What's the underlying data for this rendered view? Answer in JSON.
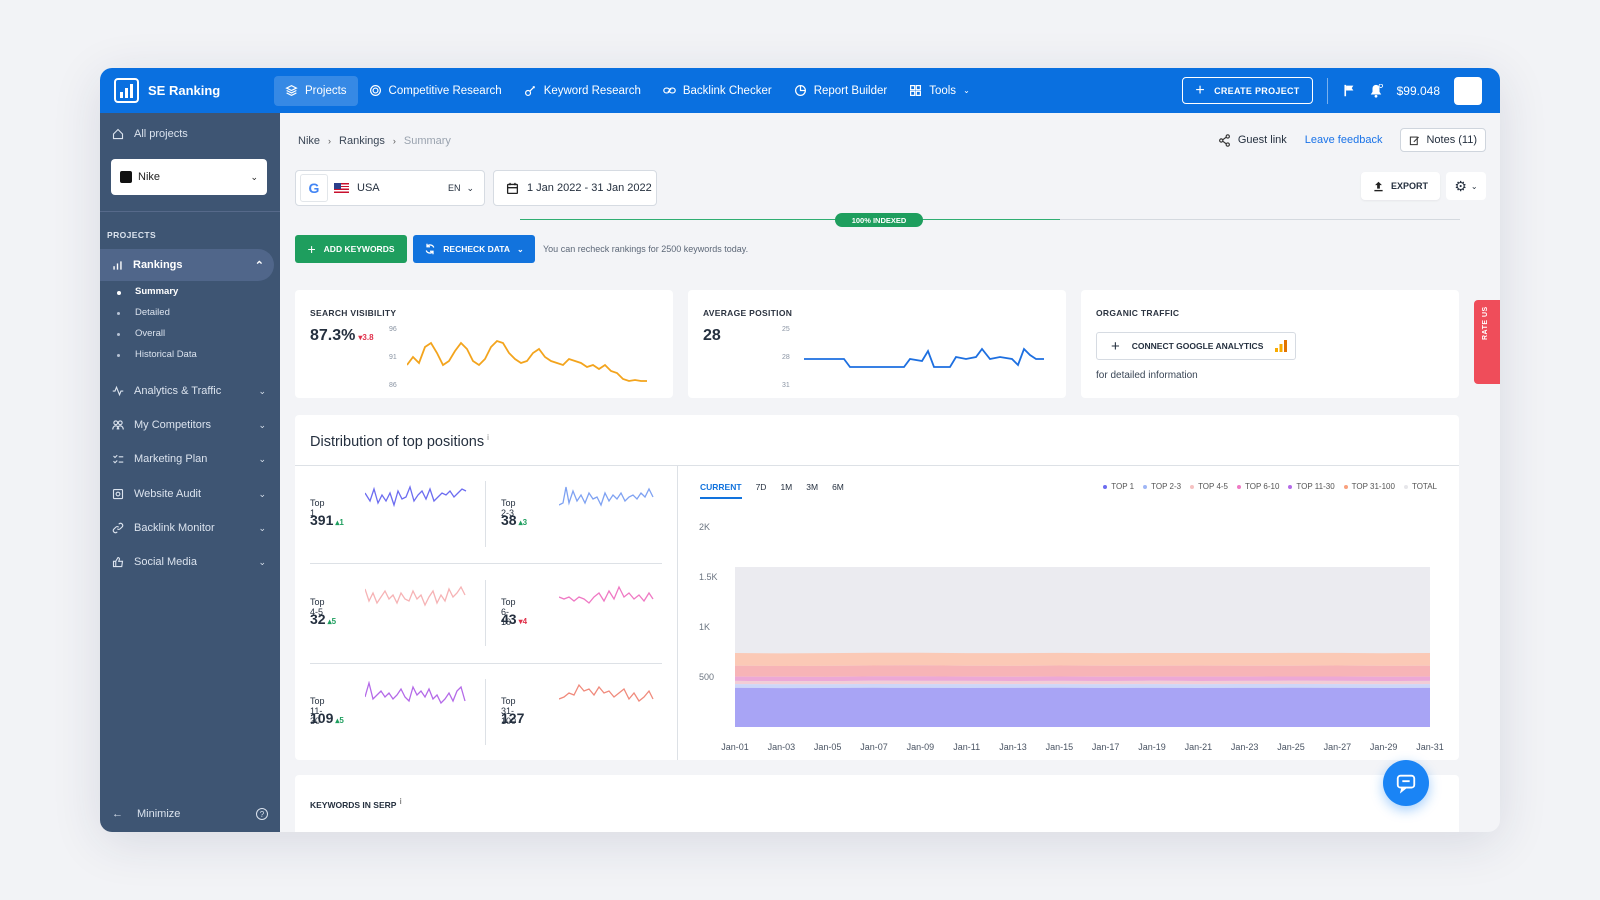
{
  "app": {
    "name": "SE Ranking"
  },
  "nav": {
    "projects": "Projects",
    "competitive": "Competitive Research",
    "keyword": "Keyword Research",
    "backlink": "Backlink Checker",
    "report": "Report Builder",
    "tools": "Tools",
    "create_project": "CREATE PROJECT",
    "balance": "$99.048"
  },
  "sidebar": {
    "all_projects": "All projects",
    "project": "Nike",
    "projects_heading": "PROJECTS",
    "rankings": "Rankings",
    "sub": [
      "Summary",
      "Detailed",
      "Overall",
      "Historical Data"
    ],
    "items": [
      "Analytics & Traffic",
      "My Competitors",
      "Marketing Plan",
      "Website Audit",
      "Backlink Monitor",
      "Social Media"
    ],
    "minimize": "Minimize"
  },
  "breadcrumb": {
    "project": "Nike",
    "section": "Rankings",
    "current": "Summary"
  },
  "header": {
    "guest_link": "Guest link",
    "feedback": "Leave feedback",
    "notes": "Notes (11)"
  },
  "filters": {
    "engine": "G",
    "country": "USA",
    "language": "EN",
    "date_range": "1 Jan 2022 - 31 Jan 2022"
  },
  "toolbar": {
    "export": "EXPORT",
    "indexed": "100% INDEXED",
    "add_keywords": "ADD KEYWORDS",
    "recheck": "RECHECK DATA",
    "recheck_note": "You can recheck rankings for 2500 keywords today."
  },
  "cards": {
    "visibility": {
      "title": "SEARCH VISIBILITY",
      "value": "87.3%",
      "delta": "3.8",
      "ticks": [
        "96",
        "91",
        "86"
      ]
    },
    "position": {
      "title": "AVERAGE POSITION",
      "value": "28",
      "ticks": [
        "25",
        "28",
        "31"
      ]
    },
    "traffic": {
      "title": "ORGANIC TRAFFIC",
      "button": "CONNECT GOOGLE ANALYTICS",
      "note": "for detailed information"
    }
  },
  "rate_us": "RATE US",
  "distribution": {
    "title": "Distribution of top positions",
    "cells": [
      {
        "label": "Top 1",
        "value": "391",
        "delta": "1",
        "dir": "up",
        "color": "#6c6cf0"
      },
      {
        "label": "Top 2-3",
        "value": "38",
        "delta": "3",
        "dir": "up",
        "color": "#7fa2f2"
      },
      {
        "label": "Top 4-5",
        "value": "32",
        "delta": "5",
        "dir": "up",
        "color": "#f6b3b5"
      },
      {
        "label": "Top 6-10",
        "value": "43",
        "delta": "4",
        "dir": "down",
        "color": "#ef79c4"
      },
      {
        "label": "Top 11-30",
        "value": "109",
        "delta": "5",
        "dir": "up",
        "color": "#b46ae8"
      },
      {
        "label": "Top 31-100",
        "value": "127",
        "delta": "",
        "dir": "",
        "color": "#f08a7c"
      }
    ],
    "tabs": [
      "CURRENT",
      "7D",
      "1M",
      "3M",
      "6M"
    ],
    "legend": [
      {
        "name": "TOP 1",
        "color": "#6c6cf0"
      },
      {
        "name": "TOP 2-3",
        "color": "#9fb6f5"
      },
      {
        "name": "TOP 4-5",
        "color": "#f6c2c2"
      },
      {
        "name": "TOP 6-10",
        "color": "#ef79c4"
      },
      {
        "name": "TOP 11-30",
        "color": "#b46ae8"
      },
      {
        "name": "TOP 31-100",
        "color": "#f9a07d"
      },
      {
        "name": "TOTAL",
        "color": "#e6e6ea"
      }
    ]
  },
  "chart_data": {
    "type": "area",
    "x": [
      "Jan-01",
      "Jan-03",
      "Jan-05",
      "Jan-07",
      "Jan-09",
      "Jan-11",
      "Jan-13",
      "Jan-15",
      "Jan-17",
      "Jan-19",
      "Jan-21",
      "Jan-23",
      "Jan-25",
      "Jan-27",
      "Jan-29",
      "Jan-31"
    ],
    "yticks": [
      "2K",
      "1.5K",
      "1K",
      "500"
    ],
    "ylim": [
      0,
      2000
    ],
    "series": [
      {
        "name": "TOP 1",
        "values": [
          391,
          389,
          390,
          392,
          391,
          390,
          391,
          392,
          390,
          391,
          390,
          391,
          392,
          391,
          390,
          391
        ],
        "color": "#a8a4f5"
      },
      {
        "name": "TOP 2-3",
        "values": [
          38,
          38,
          37,
          38,
          38,
          39,
          38,
          37,
          38,
          38,
          38,
          39,
          38,
          38,
          37,
          38
        ],
        "color": "#cdd6f8"
      },
      {
        "name": "TOP 4-5",
        "values": [
          32,
          31,
          32,
          33,
          32,
          32,
          31,
          32,
          32,
          33,
          32,
          31,
          32,
          32,
          33,
          32
        ],
        "color": "#f2cdd6"
      },
      {
        "name": "TOP 6-10",
        "values": [
          43,
          44,
          42,
          43,
          45,
          43,
          42,
          44,
          43,
          42,
          44,
          43,
          43,
          44,
          42,
          43
        ],
        "color": "#eca8d6"
      },
      {
        "name": "TOP 11-30",
        "values": [
          109,
          108,
          110,
          109,
          111,
          108,
          109,
          110,
          109,
          108,
          110,
          109,
          108,
          110,
          109,
          109
        ],
        "color": "#f7b4b7"
      },
      {
        "name": "TOP 31-100",
        "values": [
          127,
          126,
          128,
          127,
          125,
          127,
          128,
          126,
          127,
          128,
          126,
          127,
          128,
          126,
          127,
          127
        ],
        "color": "#fbc9b6"
      },
      {
        "name": "TOTAL",
        "values": [
          1600,
          1600,
          1600,
          1600,
          1600,
          1600,
          1600,
          1600,
          1600,
          1600,
          1600,
          1600,
          1600,
          1600,
          1600,
          1600
        ],
        "color": "#ebebf0"
      }
    ],
    "grid": false,
    "legend_position": "top-right"
  },
  "serp": {
    "title": "KEYWORDS IN SERP"
  }
}
